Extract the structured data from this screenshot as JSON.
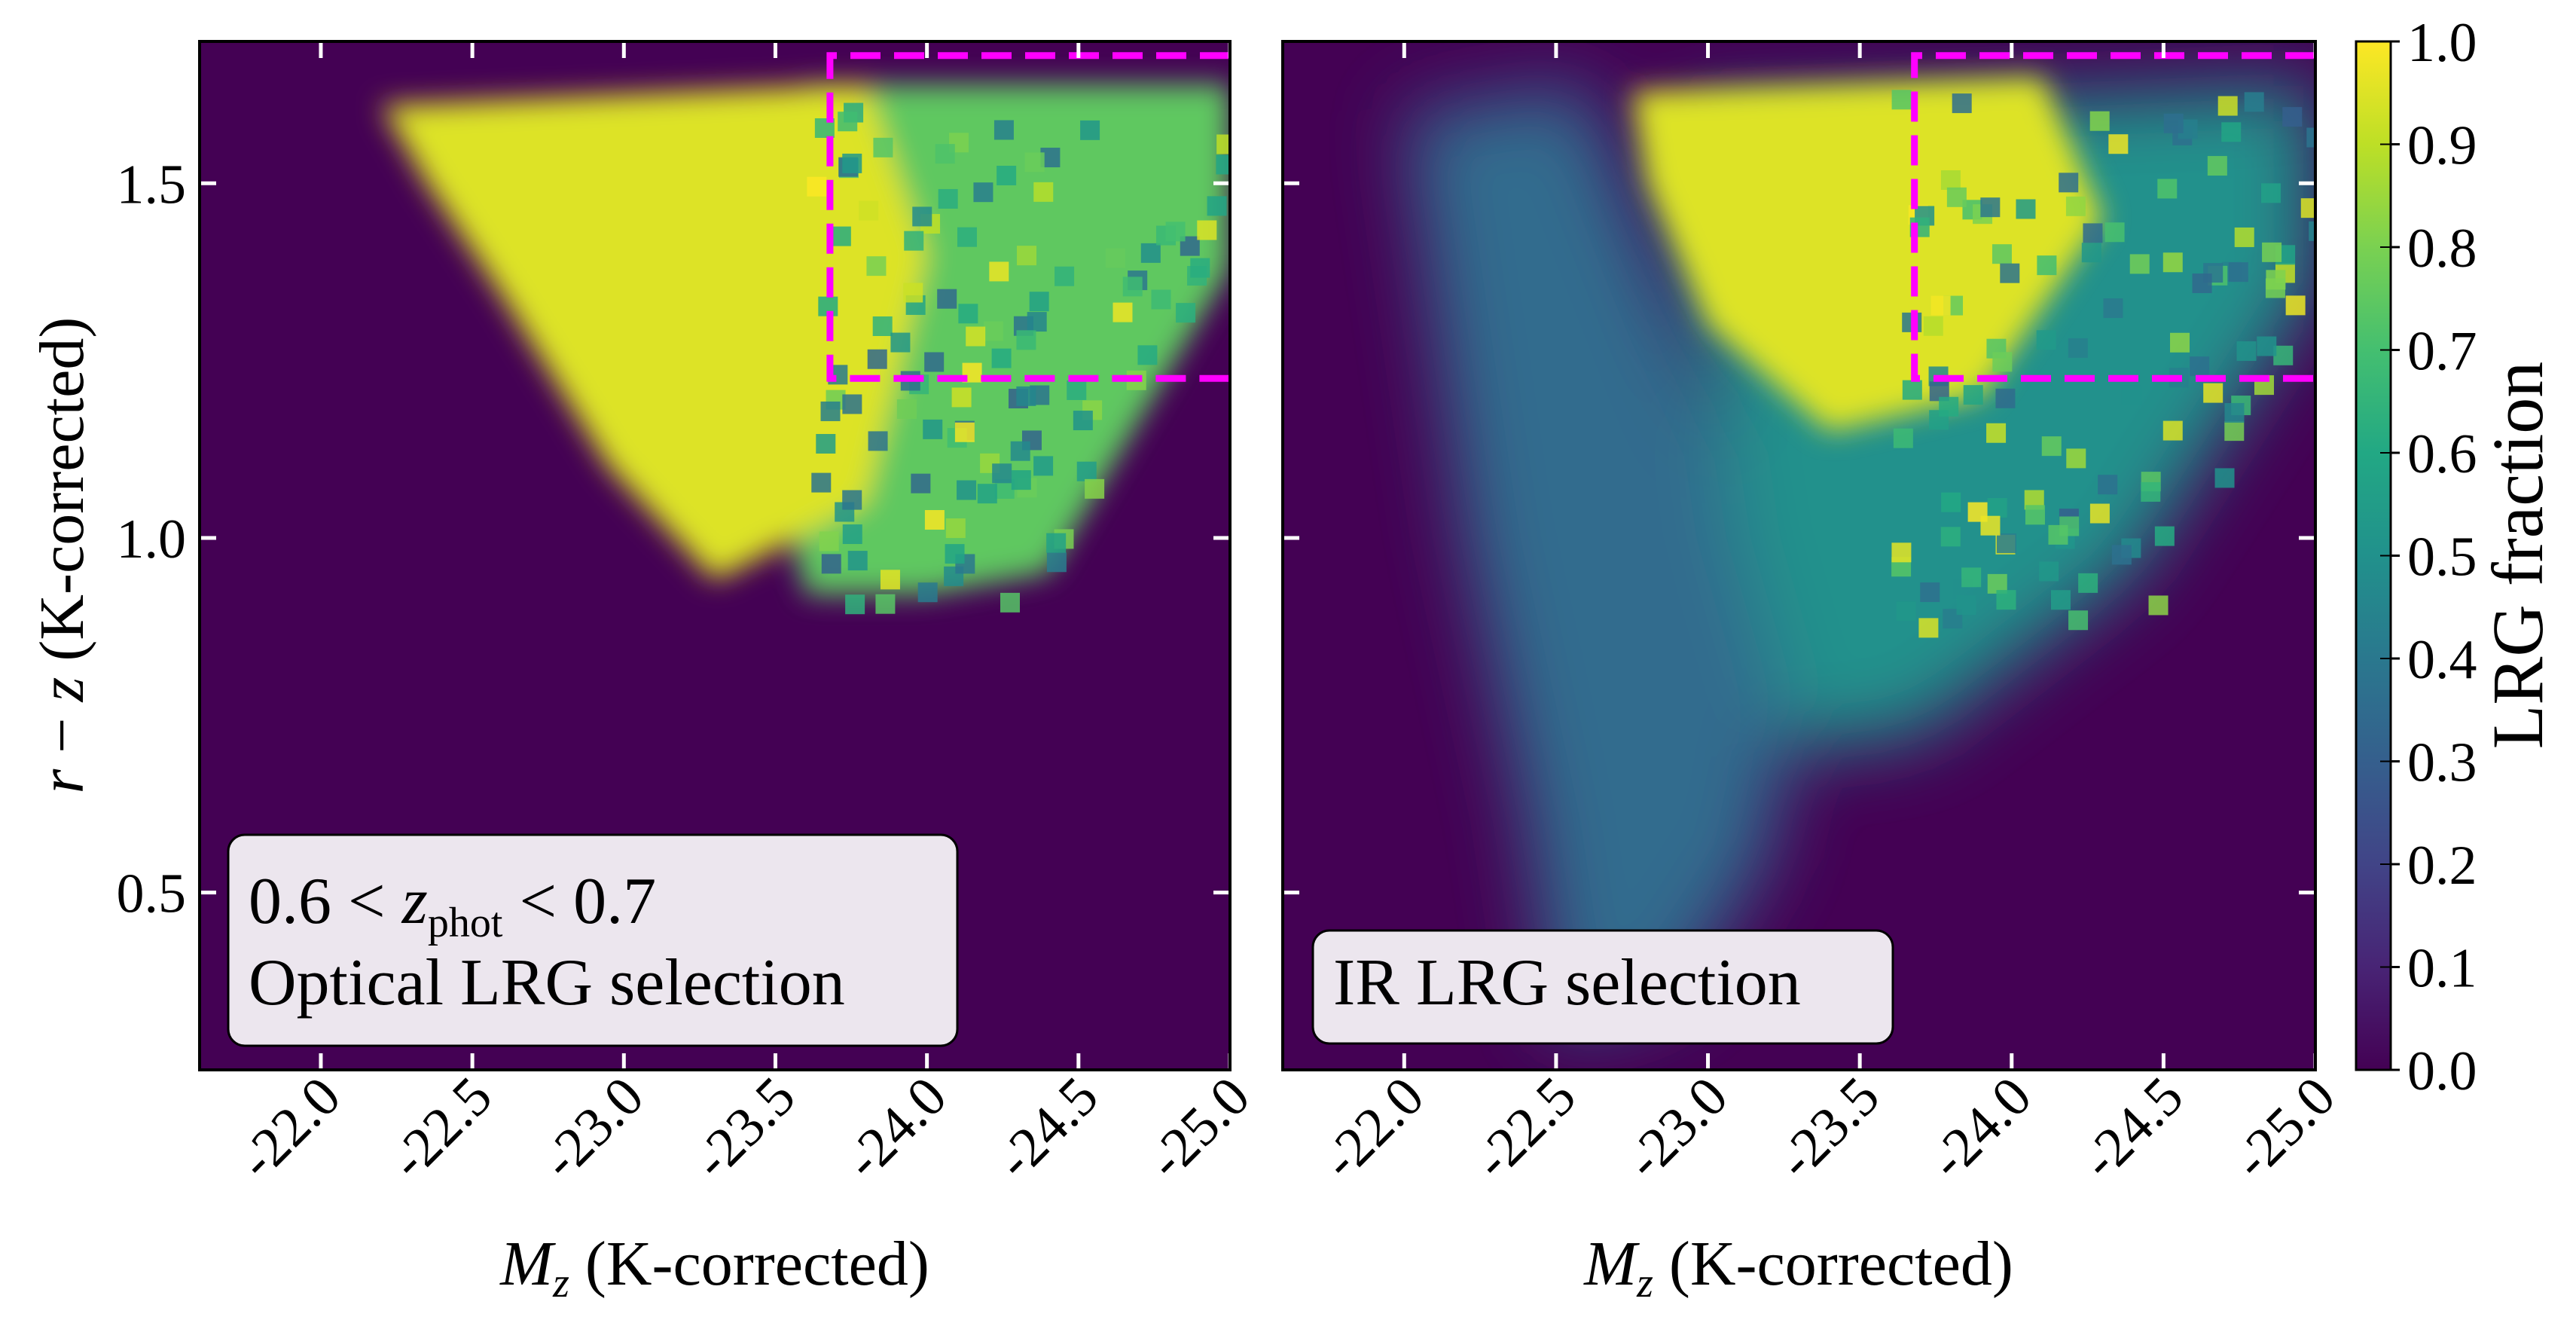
{
  "chart_data": {
    "type": "heatmap",
    "colormap": "viridis",
    "colorbar": {
      "label": "LRG fraction",
      "range": [
        0.0,
        1.0
      ],
      "ticks": [
        "0.0",
        "0.1",
        "0.2",
        "0.3",
        "0.4",
        "0.5",
        "0.6",
        "0.7",
        "0.8",
        "0.9",
        "1.0"
      ]
    },
    "x_axis": {
      "label": "M_z (K-corrected)",
      "label_main": "M",
      "label_sub": "z",
      "label_rest": " (K-corrected)",
      "range": [
        -21.6,
        -25.0
      ],
      "ticks": [
        "-22.0",
        "-22.5",
        "-23.0",
        "-23.5",
        "-24.0",
        "-24.5",
        "-25.0"
      ]
    },
    "y_axis": {
      "label": "r − z (K-corrected)",
      "label_a": "r",
      "label_op": " − ",
      "label_b": "z",
      "label_rest": " (K-corrected)",
      "range": [
        0.25,
        1.7
      ],
      "ticks": [
        "0.5",
        "1.0",
        "1.5"
      ]
    },
    "panels": [
      {
        "name": "optical",
        "annotation": {
          "line1_prefix": "0.6 < ",
          "line1_var": "z",
          "line1_sub": "phot",
          "line1_suffix": " < 0.7",
          "line2": "Optical LRG selection"
        },
        "selection_box": {
          "x_from": -23.68,
          "x_to": -25.0,
          "y_from": 1.225,
          "y_to": 1.68,
          "color": "#ff00ff"
        },
        "region_fraction": {
          "core": 0.95,
          "bright_tail": 0.75,
          "background": 0.0
        }
      },
      {
        "name": "ir",
        "annotation": {
          "line1": "IR LRG selection"
        },
        "selection_box": {
          "x_from": -23.68,
          "x_to": -25.0,
          "y_from": 1.225,
          "y_to": 1.68,
          "color": "#ff00ff"
        },
        "region_fraction": {
          "core": 0.95,
          "stripe": 0.35,
          "tail": 0.5,
          "background": 0.0
        }
      }
    ]
  }
}
